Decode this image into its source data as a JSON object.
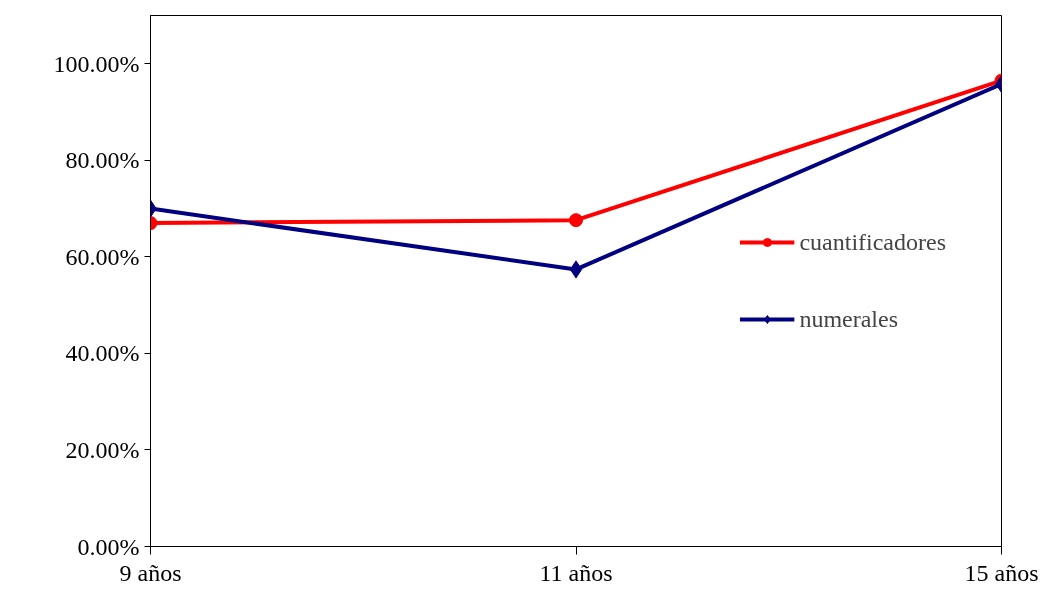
{
  "chart_data": {
    "type": "line",
    "categories": [
      "9 años",
      "11 años",
      "15 años"
    ],
    "series": [
      {
        "name": "cuantificadores",
        "color": "#ff0000",
        "marker": "circle",
        "values": [
          67,
          67.6,
          96.5
        ]
      },
      {
        "name": "numerales",
        "color": "#000080",
        "marker": "diamond",
        "values": [
          70,
          57.4,
          95.8
        ]
      }
    ],
    "ylim": [
      0,
      110
    ],
    "yticks": [
      {
        "value": 0,
        "label": "0.00%"
      },
      {
        "value": 20,
        "label": "20.00%"
      },
      {
        "value": 40,
        "label": "40.00%"
      },
      {
        "value": 60,
        "label": "60.00%"
      },
      {
        "value": 80,
        "label": "80.00%"
      },
      {
        "value": 100,
        "label": "100.00%"
      }
    ],
    "grid": false,
    "legend": "right",
    "line_style": "solid"
  }
}
